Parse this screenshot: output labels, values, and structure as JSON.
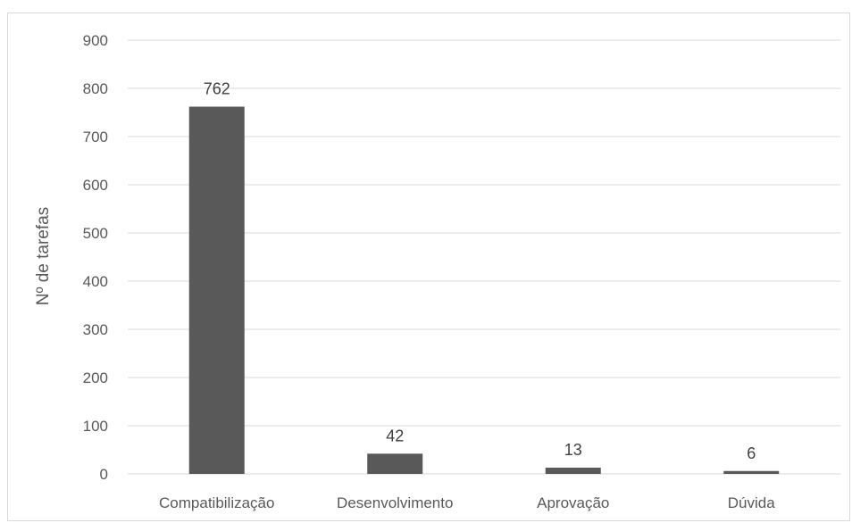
{
  "chart_data": {
    "type": "bar",
    "title": "",
    "xlabel": "",
    "ylabel": "Nº de tarefas",
    "categories": [
      "Compatibilização",
      "Desenvolvimento",
      "Aprovação",
      "Dúvida"
    ],
    "values": [
      762,
      42,
      13,
      6
    ],
    "data_labels": [
      "762",
      "42",
      "13",
      "6"
    ],
    "ylim": [
      0,
      900
    ],
    "yticks": [
      0,
      100,
      200,
      300,
      400,
      500,
      600,
      700,
      800,
      900
    ],
    "grid": true,
    "legend": "none",
    "colors": {
      "bar": "#595959",
      "grid": "#d9d9d9",
      "text": "#595959"
    }
  }
}
